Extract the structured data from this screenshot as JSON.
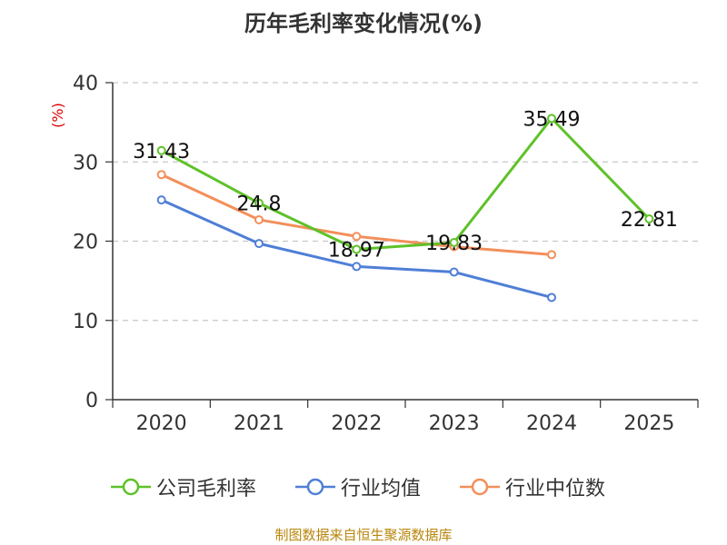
{
  "chart_data": {
    "type": "line",
    "title": "历年毛利率变化情况(%)",
    "ylabel": "(%)",
    "xlabel": "",
    "categories": [
      "2020",
      "2021",
      "2022",
      "2023",
      "2024",
      "2025"
    ],
    "ylim": [
      0,
      40
    ],
    "yticks": [
      0,
      10,
      20,
      30,
      40
    ],
    "grid": true,
    "series": [
      {
        "name": "公司毛利率",
        "color": "#5ec228",
        "values": [
          31.43,
          24.8,
          18.97,
          19.83,
          35.49,
          22.81
        ],
        "labels": [
          "31.43",
          "24.8",
          "18.97",
          "19.83",
          "35.49",
          "22.81"
        ]
      },
      {
        "name": "行业均值",
        "color": "#4f7fd6",
        "values": [
          25.2,
          19.7,
          16.8,
          16.1,
          12.9,
          null
        ]
      },
      {
        "name": "行业中位数",
        "color": "#f38f5a",
        "values": [
          28.4,
          22.7,
          20.6,
          19.3,
          18.3,
          null
        ]
      }
    ],
    "legend_position": "bottom"
  },
  "footer": {
    "source": "制图数据来自恒生聚源数据库"
  }
}
